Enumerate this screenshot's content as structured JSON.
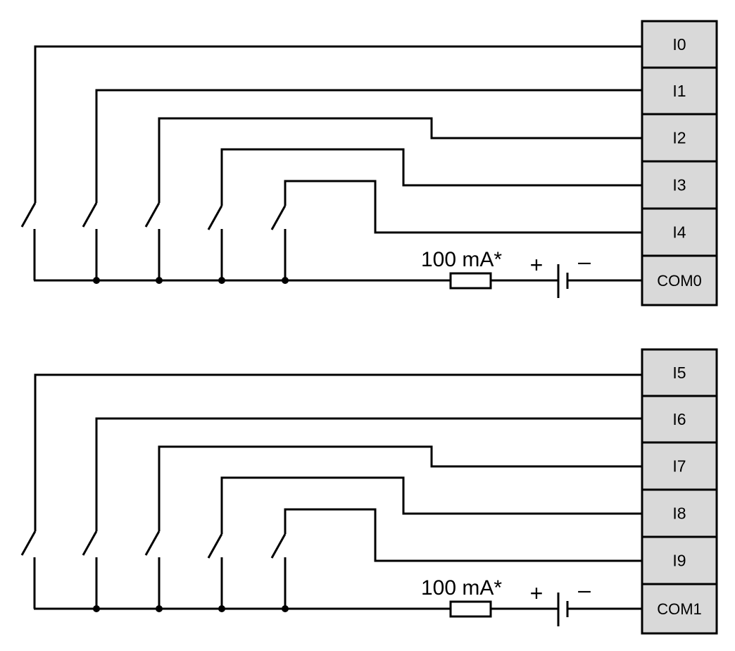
{
  "colors": {
    "line": "#000000",
    "terminal_fill": "#d9d9d9",
    "background": "#ffffff"
  },
  "blocks": [
    {
      "terminals": [
        "I0",
        "I1",
        "I2",
        "I3",
        "I4",
        "COM0"
      ],
      "fuse_label": "100 mA*",
      "plus": "+",
      "minus": "–"
    },
    {
      "terminals": [
        "I5",
        "I6",
        "I7",
        "I8",
        "I9",
        "COM1"
      ],
      "fuse_label": "100 mA*",
      "plus": "+",
      "minus": "–"
    }
  ]
}
